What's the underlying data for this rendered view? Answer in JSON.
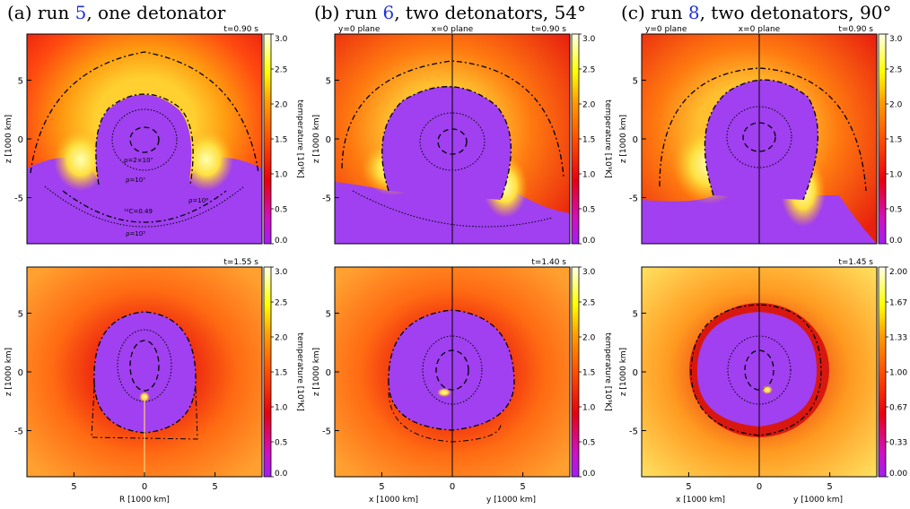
{
  "columns": [
    {
      "title_prefix": "(a) run ",
      "run": "5",
      "title_suffix": ", one detonator",
      "top_time": "t=0.90 s",
      "bottom_time": "t=1.55 s",
      "plane_labels": [],
      "x_label": "R [1000 km]",
      "x_label_right": "",
      "colorbar_top": [
        "3.0",
        "2.5",
        "2.0",
        "1.5",
        "1.0",
        "0.5",
        "0.0"
      ],
      "colorbar_bottom": [
        "3.0",
        "2.5",
        "2.0",
        "1.5",
        "1.0",
        "0.5",
        "0.0"
      ],
      "annotations": [
        "ρ=2×10⁷",
        "ρ=10⁷",
        "¹²C=0.49",
        "ρ=10⁶",
        "ρ=10⁵"
      ]
    },
    {
      "title_prefix": "(b) run ",
      "run": "6",
      "title_suffix": ", two detonators, 54°",
      "top_time": "t=0.90 s",
      "bottom_time": "t=1.40 s",
      "plane_labels": [
        "y=0 plane",
        "x=0 plane"
      ],
      "x_label": "x [1000 km]",
      "x_label_right": "y [1000 km]",
      "colorbar_top": [
        "3.0",
        "2.5",
        "2.0",
        "1.5",
        "1.0",
        "0.5",
        "0.0"
      ],
      "colorbar_bottom": [
        "3.0",
        "2.5",
        "2.0",
        "1.5",
        "1.0",
        "0.5",
        "0.0"
      ],
      "annotations": []
    },
    {
      "title_prefix": "(c) run ",
      "run": "8",
      "title_suffix": ", two detonators, 90°",
      "top_time": "t=0.90 s",
      "bottom_time": "t=1.45 s",
      "plane_labels": [
        "y=0 plane",
        "x=0 plane"
      ],
      "x_label": "x [1000 km]",
      "x_label_right": "y [1000 km]",
      "colorbar_top": [
        "3.0",
        "2.5",
        "2.0",
        "1.5",
        "1.0",
        "0.5",
        "0.0"
      ],
      "colorbar_bottom": [
        "2.00",
        "1.67",
        "1.33",
        "1.00",
        "0.67",
        "0.33",
        "0.00"
      ],
      "annotations": []
    }
  ],
  "y_axis_label": "z [1000 km]",
  "y_ticks": [
    "5",
    "0",
    "-5"
  ],
  "x_ticks": [
    "5",
    "0",
    "5"
  ],
  "colorbar_label": "temperature [10⁹K]",
  "colors": {
    "run_link": "#2233dd",
    "ash": "#a040f0",
    "hot": "#ffff80",
    "warm": "#ff8000",
    "cool": "#e81010"
  }
}
